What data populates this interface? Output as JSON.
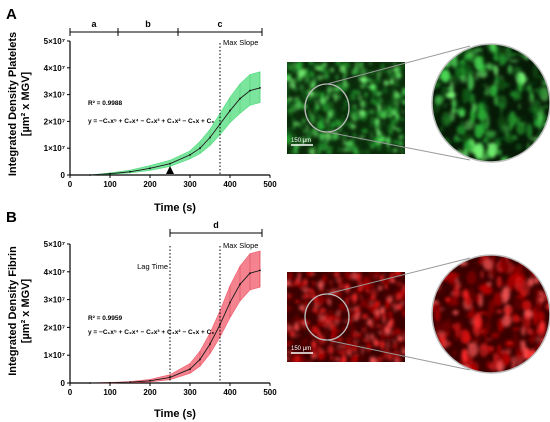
{
  "panels": [
    {
      "label": "A",
      "ylabel_line1": "Integrated Density Platelets",
      "ylabel_line2": "[µm² x MGV]",
      "xlabel": "Time (s)",
      "equation": "y = −C₁x⁵ + C₂x⁴ − C₃x³ + C₄x² − C₅x + C₆",
      "r2": "R² = 0.9988",
      "phases": [
        {
          "label": "a",
          "start": 0,
          "end": 120
        },
        {
          "label": "b",
          "start": 120,
          "end": 270
        },
        {
          "label": "c",
          "start": 270,
          "end": 480
        }
      ],
      "lines": [
        {
          "label": "Max Slope",
          "x": 375
        }
      ],
      "arrow_x": 250,
      "image_scale": "150 µm",
      "color": "#22b84a",
      "band_color": "#4fdc7c"
    },
    {
      "label": "B",
      "ylabel_line1": "Integrated Density Fibrin",
      "ylabel_line2": "[µm² x MGV]",
      "xlabel": "Time (s)",
      "equation": "y = −C₁x⁵ + C₂x⁴ − C₃x³ + C₄x² − C₅x + C₆",
      "r2": "R² = 0.9959",
      "phases": [
        {
          "label": "d",
          "start": 250,
          "end": 480
        }
      ],
      "lines": [
        {
          "label": "Lag Time",
          "x": 250
        },
        {
          "label": "Max Slope",
          "x": 375
        }
      ],
      "image_scale": "150 µm",
      "color": "#c0102a",
      "band_color": "#f05a6a"
    }
  ],
  "chart_data": [
    {
      "type": "line",
      "title": "",
      "xlabel": "Time (s)",
      "ylabel": "Integrated Density Platelets [µm² x MGV]",
      "xlim": [
        0,
        500
      ],
      "ylim": [
        0,
        50000000
      ],
      "xticks": [
        0,
        100,
        200,
        300,
        400,
        500
      ],
      "xtick_labels": [
        "0",
        "100",
        "200",
        "300",
        "400",
        "500"
      ],
      "yticks": [
        0,
        10000000,
        20000000,
        30000000,
        40000000,
        50000000
      ],
      "ytick_labels": [
        "0",
        "1×10⁷",
        "2×10⁷",
        "3×10⁷",
        "4×10⁷",
        "5×10⁷"
      ],
      "series": [
        {
          "x": [
            50,
            100,
            150,
            200,
            250,
            300,
            325,
            350,
            375,
            400,
            425,
            450,
            475
          ],
          "y": [
            0,
            500000,
            1200000,
            2500000,
            4200000,
            7500000,
            10000000,
            14000000,
            19000000,
            24000000,
            28500000,
            31500000,
            32500000
          ],
          "upper": [
            0,
            800000,
            1800000,
            3500000,
            5500000,
            9000000,
            12500000,
            17000000,
            23000000,
            29000000,
            34000000,
            37500000,
            38500000
          ],
          "lower": [
            0,
            300000,
            800000,
            1700000,
            3200000,
            6000000,
            8000000,
            11000000,
            15000000,
            19500000,
            23000000,
            26000000,
            27000000
          ]
        }
      ],
      "grid": false
    },
    {
      "type": "line",
      "title": "",
      "xlabel": "Time (s)",
      "ylabel": "Integrated Density Fibrin [µm² x MGV]",
      "xlim": [
        0,
        500
      ],
      "ylim": [
        0,
        50000000
      ],
      "xticks": [
        0,
        100,
        200,
        300,
        400,
        500
      ],
      "xtick_labels": [
        "0",
        "100",
        "200",
        "300",
        "400",
        "500"
      ],
      "yticks": [
        0,
        10000000,
        20000000,
        30000000,
        40000000,
        50000000
      ],
      "ytick_labels": [
        "0",
        "1×10⁷",
        "2×10⁷",
        "3×10⁷",
        "4×10⁷",
        "5×10⁷"
      ],
      "series": [
        {
          "x": [
            50,
            100,
            150,
            200,
            250,
            300,
            325,
            350,
            375,
            400,
            425,
            450,
            475
          ],
          "y": [
            0,
            100000,
            300000,
            800000,
            2000000,
            5000000,
            8500000,
            14000000,
            21000000,
            29000000,
            35500000,
            39500000,
            40500000
          ],
          "upper": [
            0,
            200000,
            500000,
            1300000,
            3000000,
            7000000,
            11500000,
            18000000,
            26000000,
            35000000,
            42000000,
            46500000,
            47500000
          ],
          "lower": [
            0,
            50000,
            150000,
            400000,
            1200000,
            3500000,
            6000000,
            10500000,
            16500000,
            23500000,
            29500000,
            33500000,
            34500000
          ]
        }
      ],
      "grid": false
    }
  ]
}
